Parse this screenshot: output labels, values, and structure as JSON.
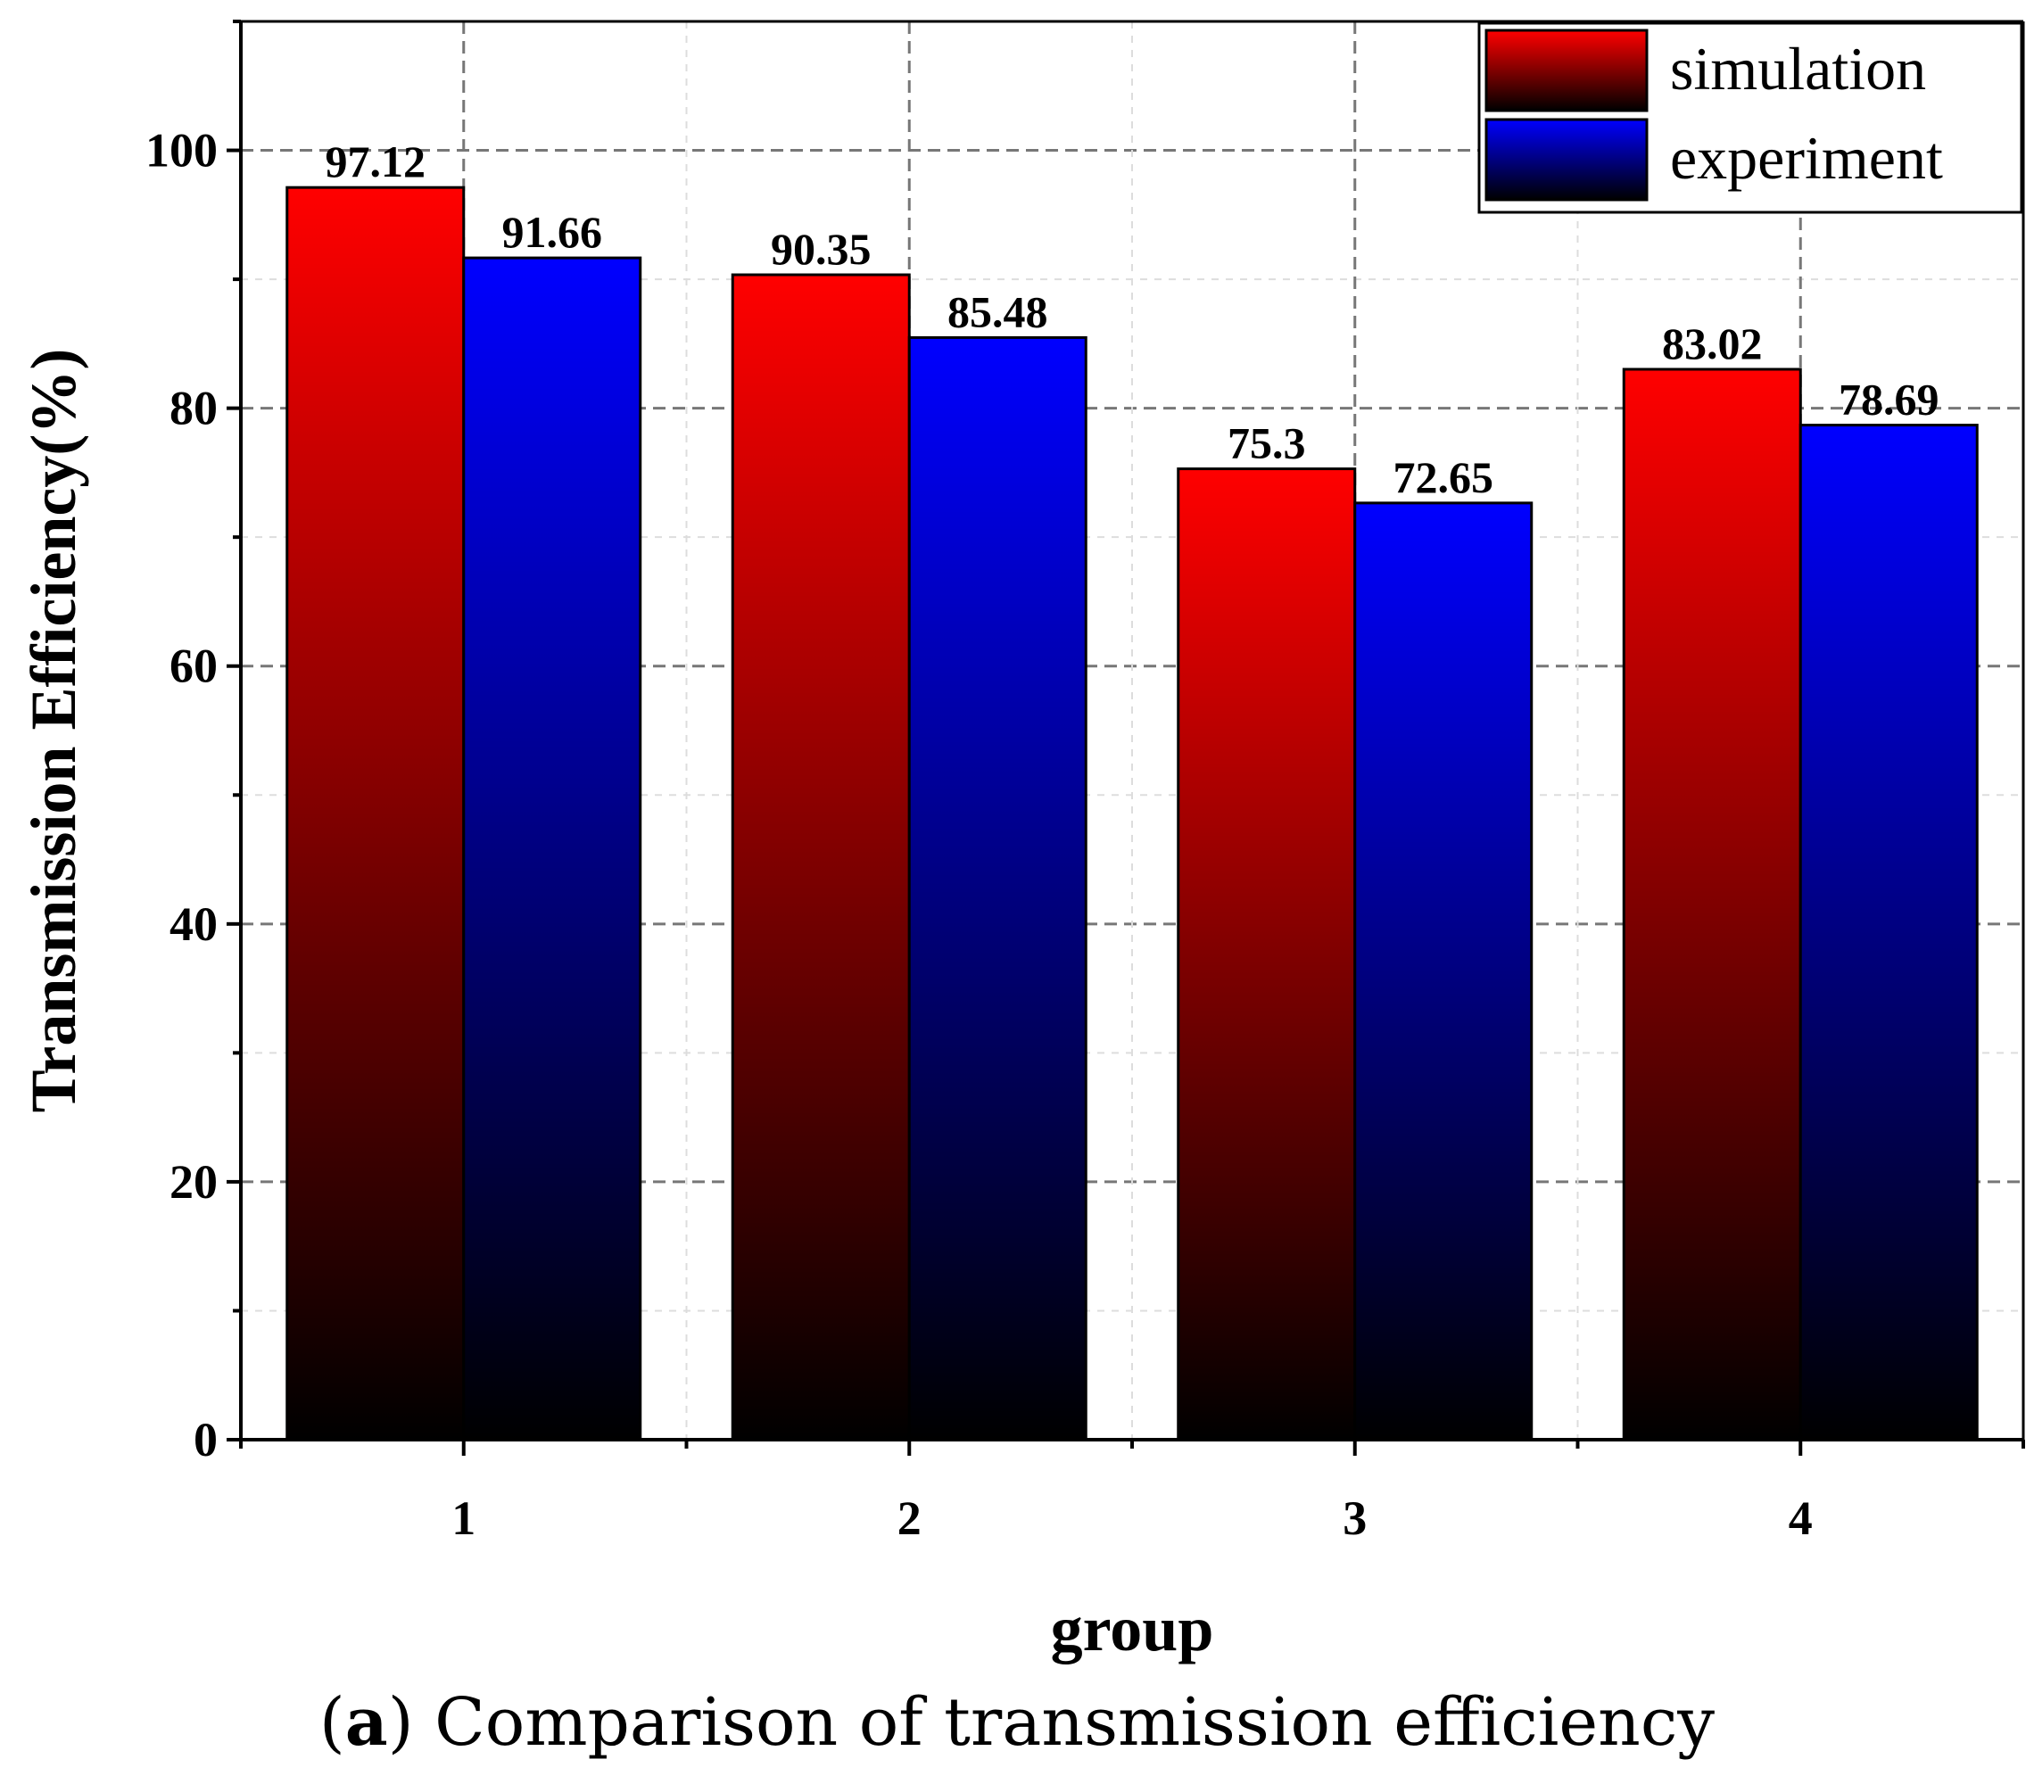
{
  "chart_data": {
    "type": "bar",
    "categories": [
      "1",
      "2",
      "3",
      "4"
    ],
    "series": [
      {
        "name": "simulation",
        "values": [
          97.12,
          90.35,
          75.3,
          83.02
        ],
        "labels": [
          "97.12",
          "90.35",
          "75.3",
          "83.02"
        ],
        "color": "#ff0000"
      },
      {
        "name": "experiment",
        "values": [
          91.66,
          85.48,
          72.65,
          78.69
        ],
        "labels": [
          "91.66",
          "85.48",
          "72.65",
          "78.69"
        ],
        "color": "#0000ff"
      }
    ],
    "xlabel": "group",
    "ylabel": "Transmission Efficiency(%)",
    "ylim": [
      0,
      110
    ],
    "yticks": [
      0,
      20,
      40,
      60,
      80,
      100
    ],
    "grid": true,
    "legend": "top-right"
  },
  "caption": {
    "label": "a",
    "text": "Comparison of transmission efficiency"
  }
}
